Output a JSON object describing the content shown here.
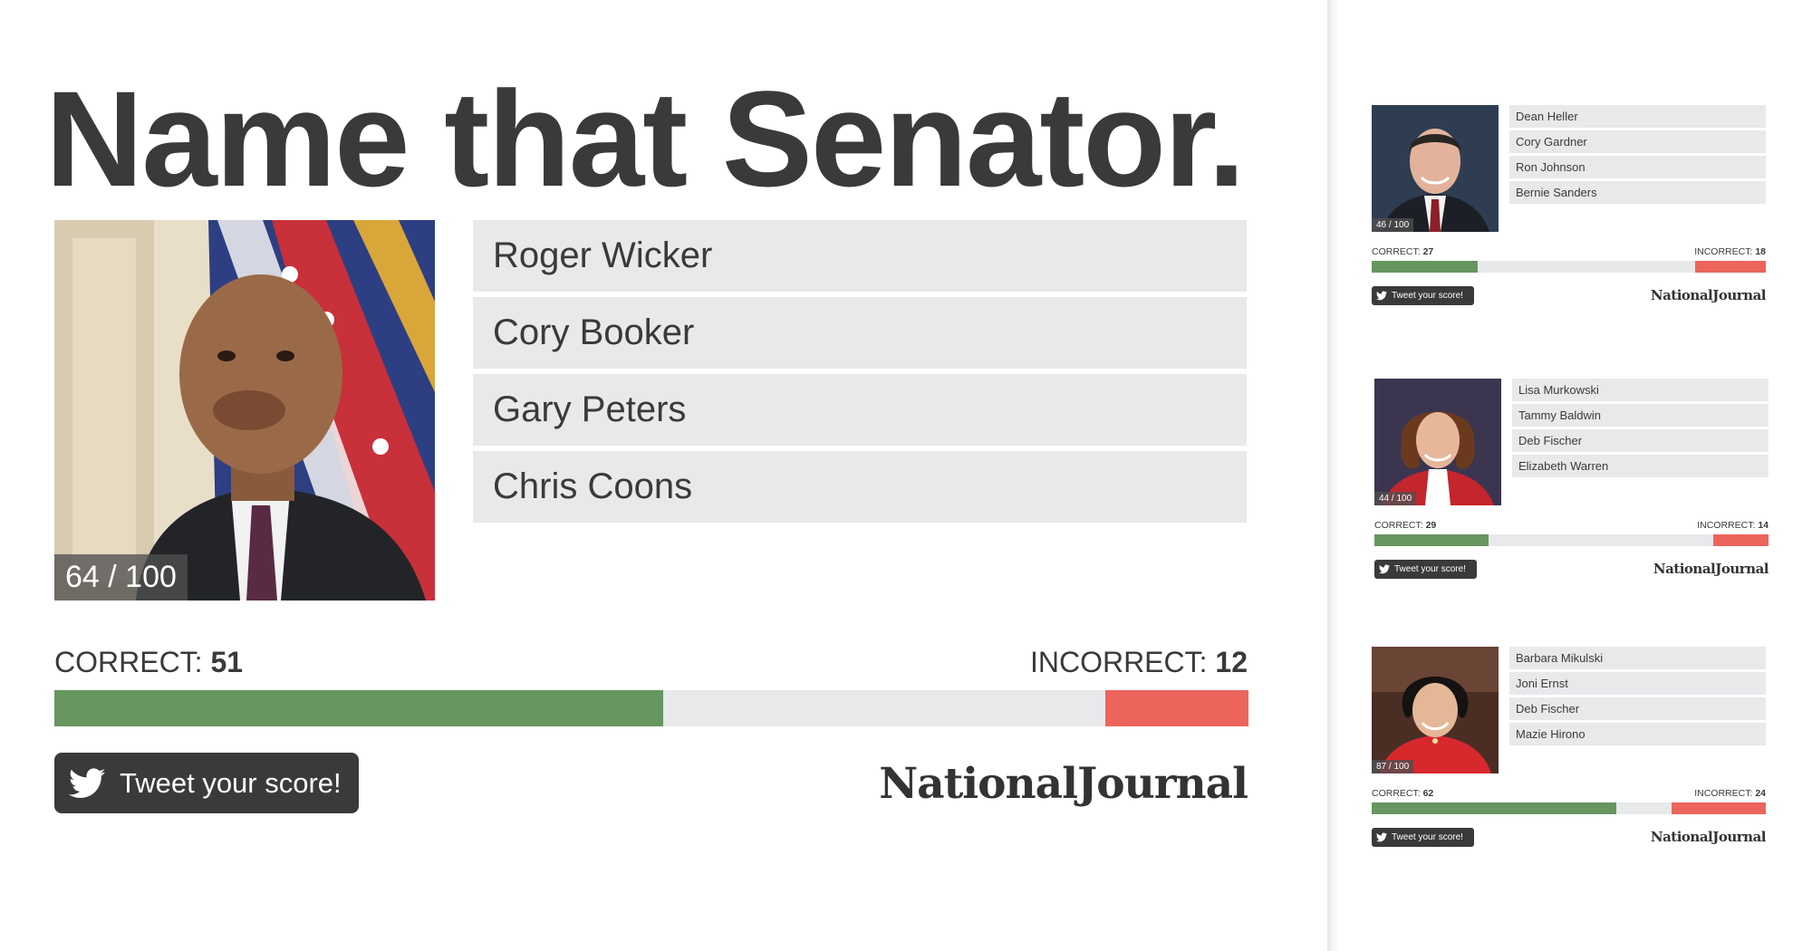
{
  "main": {
    "title": "Name that Senator.",
    "score_label": "64 / 100",
    "options": [
      "Roger Wicker",
      "Cory Booker",
      "Gary Peters",
      "Chris Coons"
    ],
    "correct_label": "CORRECT:",
    "correct_count": "51",
    "incorrect_label": "INCORRECT:",
    "incorrect_count": "12",
    "progress": {
      "correct_fraction": 0.51,
      "incorrect_fraction": 0.12
    },
    "tweet_label": "Tweet your score!",
    "logo_text": "NationalJournal"
  },
  "mini_cards": [
    {
      "score_label": "46 / 100",
      "options": [
        "Dean Heller",
        "Cory Gardner",
        "Ron Johnson",
        "Bernie Sanders"
      ],
      "correct_label": "CORRECT:",
      "correct_count": "27",
      "incorrect_label": "INCORRECT:",
      "incorrect_count": "18",
      "progress": {
        "correct_fraction": 0.27,
        "incorrect_fraction": 0.18
      },
      "tweet_label": "Tweet your score!",
      "logo_text": "NationalJournal"
    },
    {
      "score_label": "44 / 100",
      "options": [
        "Lisa Murkowski",
        "Tammy Baldwin",
        "Deb Fischer",
        "Elizabeth Warren"
      ],
      "correct_label": "CORRECT:",
      "correct_count": "29",
      "incorrect_label": "INCORRECT:",
      "incorrect_count": "14",
      "progress": {
        "correct_fraction": 0.29,
        "incorrect_fraction": 0.14
      },
      "tweet_label": "Tweet your score!",
      "logo_text": "NationalJournal"
    },
    {
      "score_label": "87 / 100",
      "options": [
        "Barbara Mikulski",
        "Joni Ernst",
        "Deb Fischer",
        "Mazie Hirono"
      ],
      "correct_label": "CORRECT:",
      "correct_count": "62",
      "incorrect_label": "INCORRECT:",
      "incorrect_count": "24",
      "progress": {
        "correct_fraction": 0.62,
        "incorrect_fraction": 0.24
      },
      "tweet_label": "Tweet your score!",
      "logo_text": "NationalJournal"
    }
  ],
  "icons": {
    "tweet": "twitter-bird-icon"
  },
  "colors": {
    "correct": "#67965f",
    "incorrect": "#ec655c",
    "bar_track": "#e8e9eb",
    "option_bg": "#e8e9eb",
    "text": "#3a3a3a",
    "tweet_bg": "#3a3a3a"
  }
}
